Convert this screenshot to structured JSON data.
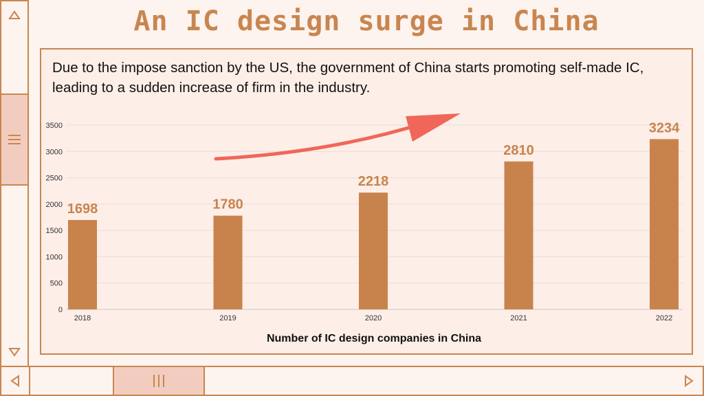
{
  "page": {
    "title": "An IC design surge in China",
    "description": "Due to the impose sanction by the US, the government of China starts promoting self-made IC, leading to a sudden increase of firm in the industry."
  },
  "colors": {
    "accent": "#c8864f",
    "bar": "#c8834d",
    "arrow": "#f0675a",
    "thumb": "#f2cdbf"
  },
  "scrollbars": {
    "up_icon": "triangle-up-icon",
    "down_icon": "triangle-down-icon",
    "left_icon": "triangle-left-icon",
    "right_icon": "triangle-right-icon"
  },
  "chart_data": {
    "type": "bar",
    "title": "",
    "categories": [
      "2018",
      "2019",
      "2020",
      "2021",
      "2022"
    ],
    "values": [
      1698,
      1780,
      2218,
      2810,
      3234
    ],
    "xlabel": "Number of IC design companies in China",
    "ylabel": "",
    "ylim": [
      0,
      3500
    ],
    "yticks": [
      0,
      500,
      1000,
      1500,
      2000,
      2500,
      3000,
      3500
    ],
    "grid": true,
    "data_labels": true,
    "annotation": "upward-trend-arrow"
  }
}
